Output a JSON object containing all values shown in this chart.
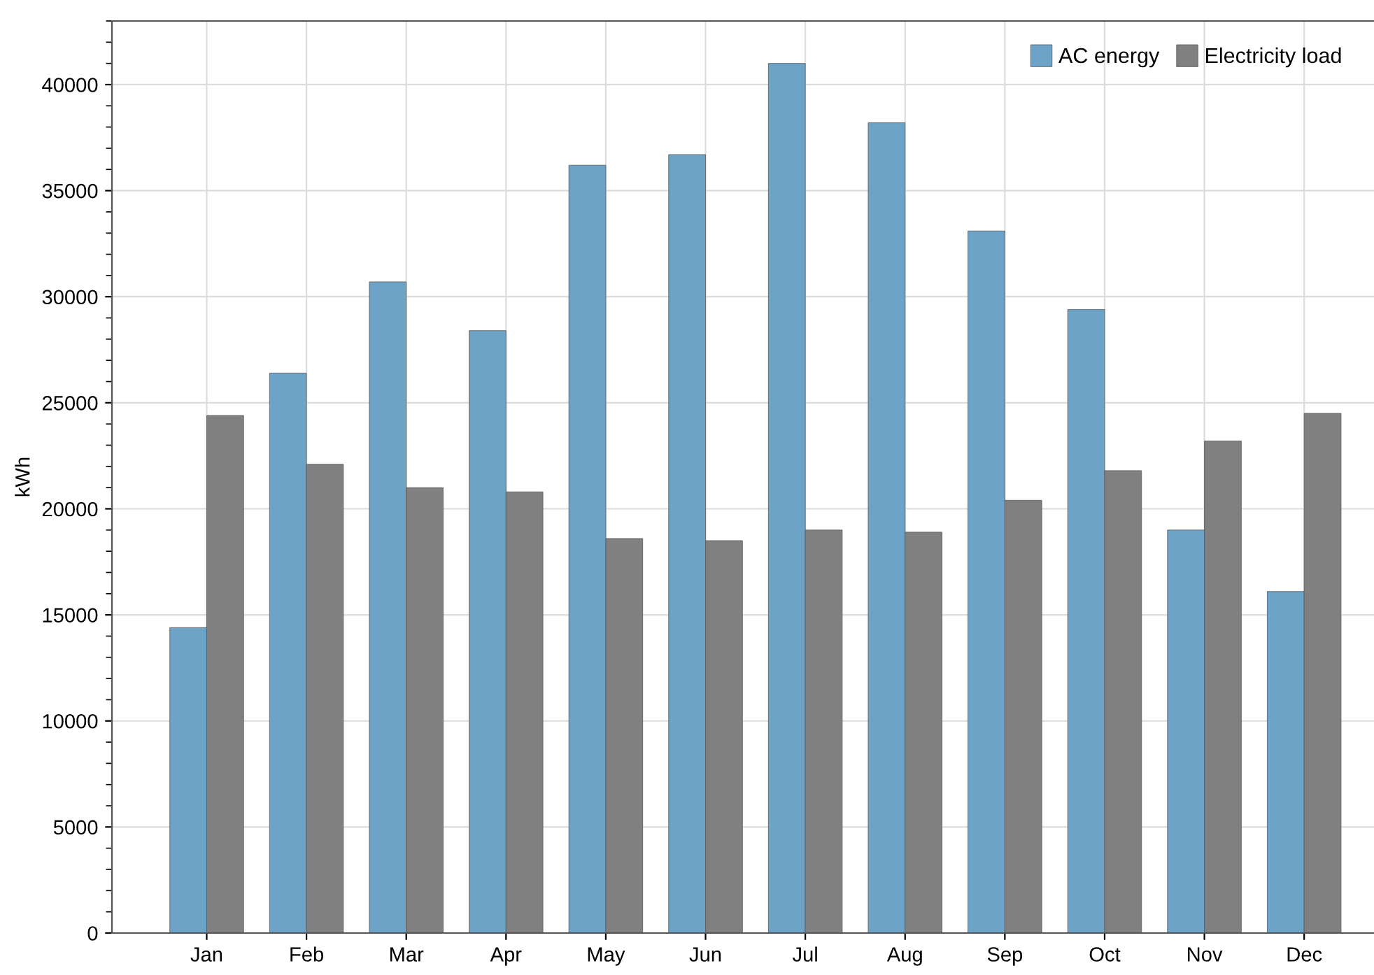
{
  "chart_data": {
    "type": "bar",
    "ylabel": "kWh",
    "categories": [
      "Jan",
      "Feb",
      "Mar",
      "Apr",
      "May",
      "Jun",
      "Jul",
      "Aug",
      "Sep",
      "Oct",
      "Nov",
      "Dec"
    ],
    "series": [
      {
        "name": "AC energy",
        "color": "#6ca3c6",
        "values": [
          14400,
          26400,
          30700,
          28400,
          36200,
          36700,
          41000,
          38200,
          33100,
          29400,
          19000,
          16100
        ]
      },
      {
        "name": "Electricity load",
        "color": "#808080",
        "values": [
          24400,
          22100,
          21000,
          20800,
          18600,
          18500,
          19000,
          18900,
          20400,
          21800,
          23200,
          24500
        ]
      }
    ],
    "ylim": [
      0,
      43000
    ],
    "yticks": [
      0,
      5000,
      10000,
      15000,
      20000,
      25000,
      30000,
      35000,
      40000
    ],
    "grid": true,
    "legend": "top right"
  }
}
